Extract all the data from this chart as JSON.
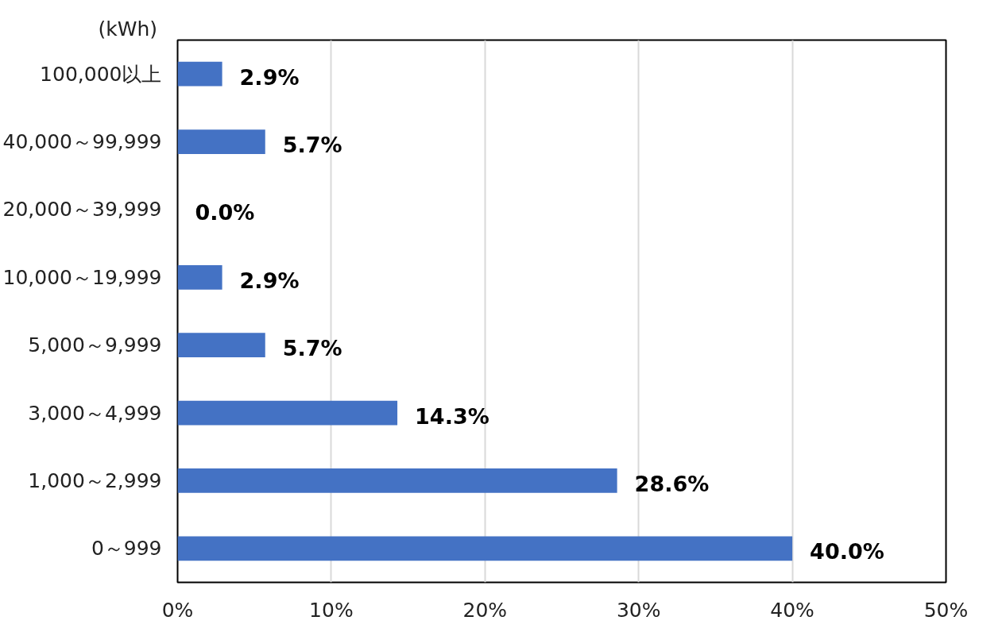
{
  "chart_data": {
    "type": "bar",
    "orientation": "horizontal",
    "ylabel": "(kWh)",
    "categories": [
      "100,000以上",
      "40,000～99,999",
      "20,000～39,999",
      "10,000～19,999",
      "5,000～9,999",
      "3,000～4,999",
      "1,000～2,999",
      "0～999"
    ],
    "values": [
      2.9,
      5.7,
      0.0,
      2.9,
      5.7,
      14.3,
      28.6,
      40.0
    ],
    "value_labels": [
      "2.9%",
      "5.7%",
      "0.0%",
      "2.9%",
      "5.7%",
      "14.3%",
      "28.6%",
      "40.0%"
    ],
    "color": "#4472c4",
    "xlim": [
      0,
      50
    ],
    "xticks": [
      {
        "value": 0,
        "label": "0%"
      },
      {
        "value": 10,
        "label": "10%"
      },
      {
        "value": 20,
        "label": "20%"
      },
      {
        "value": 30,
        "label": "30%"
      },
      {
        "value": 40,
        "label": "40%"
      },
      {
        "value": 50,
        "label": "50%"
      }
    ],
    "grid": "x"
  }
}
